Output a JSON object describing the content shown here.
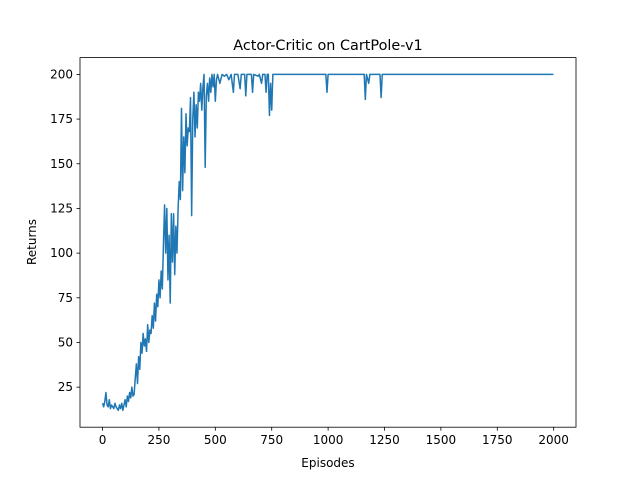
{
  "chart_data": {
    "type": "line",
    "title": "Actor-Critic on CartPole-v1",
    "x_label": "Episodes",
    "y_label": "Returns",
    "xlim": [
      -99.95,
      2098.95
    ],
    "ylim": [
      2.6,
      209.4
    ],
    "xticks": [
      0,
      250,
      500,
      750,
      1000,
      1250,
      1500,
      1750,
      2000
    ],
    "yticks": [
      25,
      50,
      75,
      100,
      125,
      150,
      175,
      200
    ],
    "series": [
      {
        "color": "#1f77b4",
        "x": [
          0,
          5,
          10,
          15,
          20,
          25,
          30,
          35,
          40,
          50,
          55,
          60,
          70,
          75,
          80,
          85,
          90,
          95,
          100,
          105,
          110,
          115,
          120,
          125,
          130,
          135,
          140,
          145,
          150,
          155,
          160,
          165,
          170,
          175,
          180,
          185,
          190,
          195,
          200,
          205,
          210,
          215,
          220,
          225,
          230,
          235,
          240,
          245,
          250,
          255,
          260,
          265,
          270,
          275,
          280,
          285,
          290,
          295,
          300,
          305,
          310,
          315,
          320,
          325,
          330,
          335,
          340,
          345,
          350,
          355,
          360,
          365,
          370,
          375,
          380,
          385,
          390,
          395,
          400,
          405,
          410,
          415,
          420,
          425,
          430,
          435,
          440,
          445,
          450,
          455,
          460,
          465,
          470,
          475,
          480,
          485,
          490,
          495,
          500,
          505,
          510,
          520,
          530,
          540,
          550,
          560,
          570,
          580,
          585,
          600,
          610,
          615,
          630,
          635,
          640,
          660,
          665,
          670,
          690,
          695,
          705,
          710,
          720,
          725,
          730,
          735,
          740,
          745,
          750,
          755,
          990,
          995,
          1000,
          1160,
          1165,
          1170,
          1180,
          1185,
          1230,
          1235,
          1240,
          1999
        ],
        "values": [
          16,
          14,
          17,
          22,
          15,
          14,
          18,
          13,
          15,
          13,
          16,
          14,
          12,
          15,
          13,
          16,
          12,
          15,
          18,
          14,
          20,
          17,
          22,
          19,
          25,
          20,
          21,
          30,
          38,
          27,
          42,
          35,
          50,
          44,
          55,
          48,
          52,
          45,
          60,
          50,
          57,
          55,
          65,
          58,
          72,
          62,
          77,
          70,
          85,
          75,
          90,
          80,
          105,
          127,
          100,
          125,
          85,
          110,
          72,
          122,
          95,
          122,
          88,
          115,
          100,
          125,
          140,
          130,
          181,
          135,
          165,
          145,
          178,
          160,
          170,
          168,
          187,
          121,
          175,
          190,
          165,
          183,
          170,
          190,
          185,
          195,
          180,
          193,
          200,
          148,
          188,
          195,
          185,
          198,
          190,
          200,
          193,
          200,
          185,
          197,
          200,
          195,
          200,
          199,
          200,
          197,
          200,
          190,
          200,
          200,
          192,
          200,
          200,
          188,
          200,
          200,
          190,
          200,
          199,
          200,
          195,
          200,
          200,
          190,
          200,
          200,
          177,
          195,
          180,
          200,
          200,
          190,
          200,
          200,
          186,
          200,
          195,
          200,
          200,
          187,
          200,
          200
        ]
      }
    ]
  }
}
